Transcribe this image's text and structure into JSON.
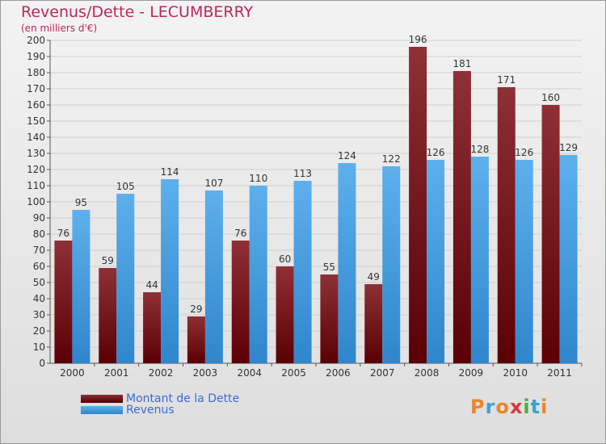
{
  "title": "Revenus/Dette - LECUMBERRY",
  "subtitle": "(en milliers d'€)",
  "logo_text": "Proxiti",
  "chart_data": {
    "type": "bar",
    "title": "Revenus/Dette - LECUMBERRY",
    "subtitle": "(en milliers d'€)",
    "categories": [
      "2000",
      "2001",
      "2002",
      "2003",
      "2004",
      "2005",
      "2006",
      "2007",
      "2008",
      "2009",
      "2010",
      "2011"
    ],
    "series": [
      {
        "name": "Montant de la Dette",
        "color": "#7a1a1e",
        "values": [
          76,
          59,
          44,
          29,
          76,
          60,
          55,
          49,
          196,
          181,
          171,
          160
        ]
      },
      {
        "name": "Revenus",
        "color": "#4a9fe0",
        "values": [
          95,
          105,
          114,
          107,
          110,
          113,
          124,
          122,
          126,
          128,
          126,
          129
        ]
      }
    ],
    "ylim": [
      0,
      200
    ],
    "ytick_step": 10,
    "grid": true,
    "legend_position": "bottom-left"
  }
}
